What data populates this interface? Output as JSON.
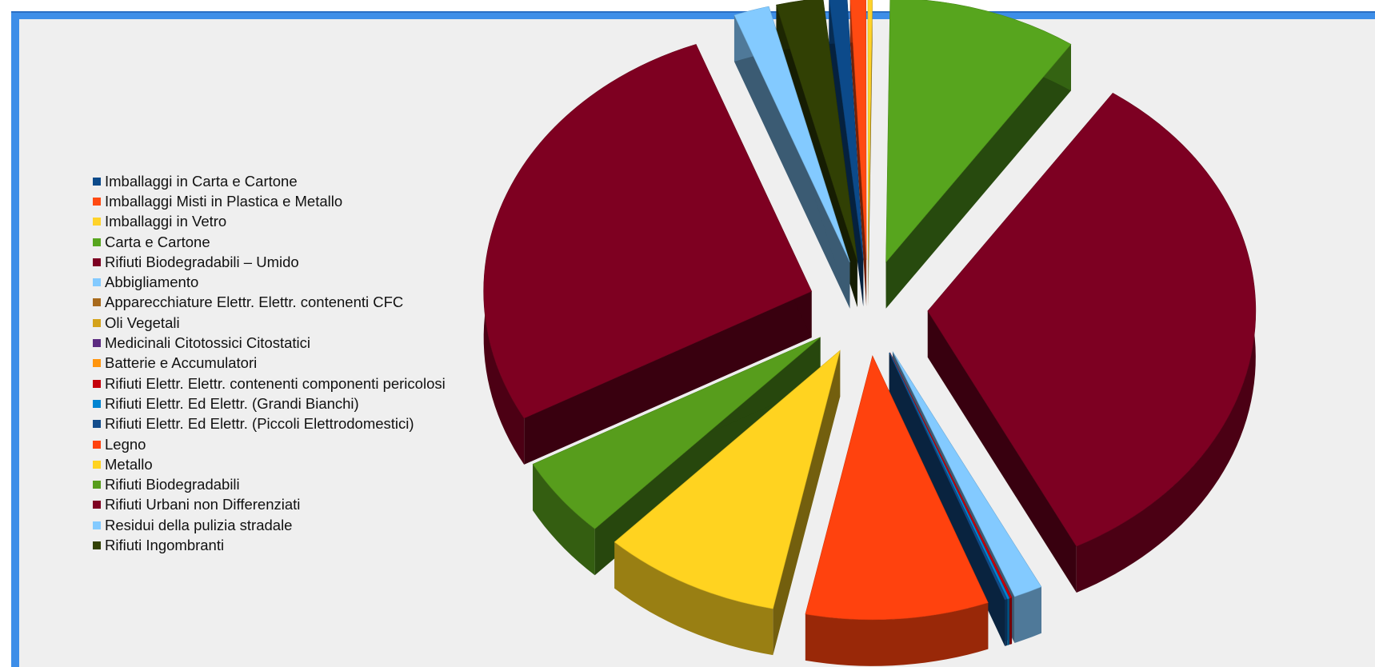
{
  "chart_data": {
    "type": "pie",
    "style": "3d-exploded",
    "legend_position": "left",
    "series": [
      {
        "name": "Imballaggi in Carta e Cartone",
        "value": 0.8,
        "color": "#0c4a8a"
      },
      {
        "name": "Imballaggi Misti in Plastica e Metallo",
        "value": 0.7,
        "color": "#ff4a12"
      },
      {
        "name": "Imballaggi in Vetro",
        "value": 0.2,
        "color": "#ffd32a"
      },
      {
        "name": "Carta e Cartone",
        "value": 8.5,
        "color": "#57a51e"
      },
      {
        "name": "Rifiuti Biodegradabili – Umido",
        "value": 30.0,
        "color": "#7d0022"
      },
      {
        "name": "Abbigliamento",
        "value": 1.3,
        "color": "#83caff"
      },
      {
        "name": "Apparecchiature Elettr. Elettr. contenenti CFC",
        "value": 0.0,
        "color": "#a86a1c"
      },
      {
        "name": "Oli Vegetali",
        "value": 0.0,
        "color": "#d4a21a"
      },
      {
        "name": "Medicinali Citotossici Citostatici",
        "value": 0.0,
        "color": "#5c2b80"
      },
      {
        "name": "Batterie e Accumulatori",
        "value": 0.0,
        "color": "#ff950e"
      },
      {
        "name": "Rifiuti Elettr. Elettr. contenenti componenti pericolosi",
        "value": 0.1,
        "color": "#c5000b"
      },
      {
        "name": "Rifiuti Elettr. Ed Elettr. (Grandi Bianchi)",
        "value": 0.1,
        "color": "#0084d1"
      },
      {
        "name": "Rifiuti Elettr. Ed Elettr. (Piccoli Elettrodomestici)",
        "value": 0.1,
        "color": "#134d8c"
      },
      {
        "name": "Legno",
        "value": 8.2,
        "color": "#ff420e"
      },
      {
        "name": "Metallo",
        "value": 8.0,
        "color": "#ffd320"
      },
      {
        "name": "Rifiuti Biodegradabili",
        "value": 4.5,
        "color": "#579d1c"
      },
      {
        "name": "Rifiuti Urbani non Differenziati",
        "value": 24.8,
        "color": "#7e0021"
      },
      {
        "name": "Residui della pulizia stradale",
        "value": 1.6,
        "color": "#83caff"
      },
      {
        "name": "Rifiuti Ingombranti",
        "value": 2.1,
        "color": "#314004"
      }
    ]
  }
}
